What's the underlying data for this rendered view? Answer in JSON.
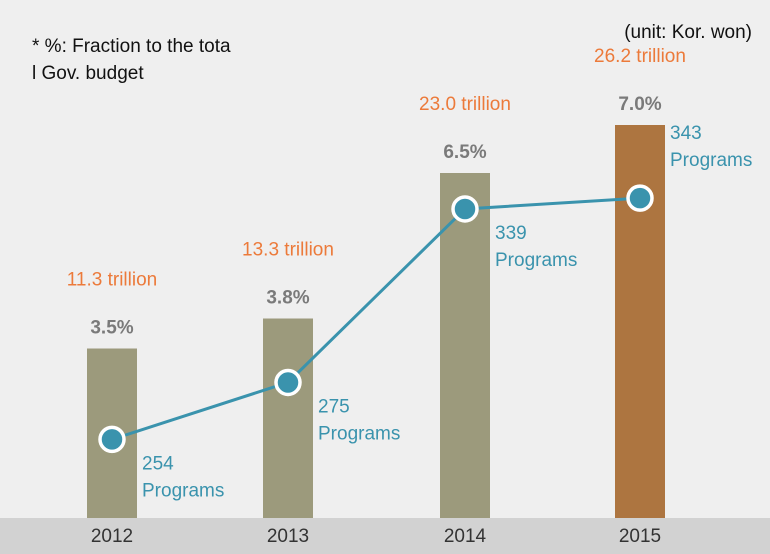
{
  "chart_data": {
    "type": "bar",
    "note_lines": [
      "* %: Fraction to the tota",
      "l Gov. budget"
    ],
    "unit": "(unit: Kor. won)",
    "categories": [
      "2012",
      "2013",
      "2014",
      "2015"
    ],
    "values": [
      11.3,
      13.3,
      23.0,
      26.2
    ],
    "value_labels": [
      "11.3 trillion",
      "13.3 trillion",
      "23.0 trillion",
      "26.2 trillion"
    ],
    "colors": [
      "#9c9a7c",
      "#9c9a7c",
      "#9c9a7c",
      "#ad7540"
    ],
    "label_color": "#ec7a3a",
    "ylim": [
      0,
      30
    ],
    "percent": {
      "values": [
        3.5,
        3.8,
        6.5,
        7.0
      ],
      "value_labels": [
        "3.5%",
        "3.8%",
        "6.5%",
        "7.0%"
      ],
      "color": "#7a7a7a"
    },
    "line": {
      "type": "line",
      "axis": "y2",
      "values": [
        254,
        275,
        339,
        343
      ],
      "unit_label": "Programs",
      "color": "#3a93ad"
    },
    "y2lim": [
      225,
      391
    ]
  }
}
